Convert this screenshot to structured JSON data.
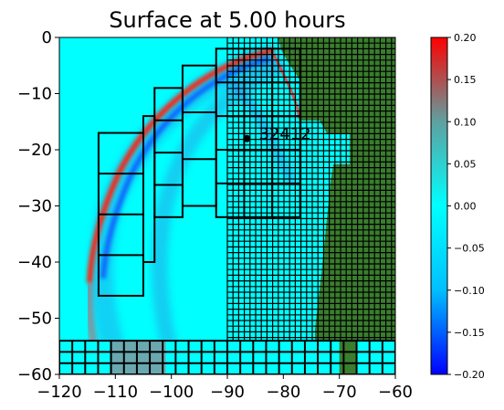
{
  "chart_data": {
    "type": "heatmap",
    "title": "Surface at 5.00 hours",
    "xlabel": "",
    "ylabel": "",
    "xlim": [
      -120,
      -60
    ],
    "ylim": [
      -60,
      0
    ],
    "x_ticks": [
      -120,
      -110,
      -100,
      -90,
      -80,
      -70,
      -60
    ],
    "x_tick_labels": [
      "−120",
      "−110",
      "−100",
      "−90",
      "−80",
      "−70",
      "−60"
    ],
    "y_ticks": [
      0,
      -10,
      -20,
      -30,
      -40,
      -50,
      -60
    ],
    "y_tick_labels": [
      "0",
      "−10",
      "−20",
      "−30",
      "−40",
      "−50",
      "−60"
    ],
    "colorbar": {
      "min": -0.2,
      "max": 0.2,
      "ticks": [
        0.2,
        0.15,
        0.1,
        0.05,
        0.0,
        -0.05,
        -0.1,
        -0.15,
        -0.2
      ],
      "tick_labels": [
        "0.20",
        "0.15",
        "0.10",
        "0.05",
        "0.00",
        "−0.05",
        "−0.10",
        "−0.15",
        "−0.20"
      ],
      "colors": [
        "#0000ff",
        "#00bfff",
        "#00ffff",
        "#5fa0a0",
        "#ff0000"
      ]
    },
    "annotations": [
      {
        "label": "32412",
        "x": -86.5,
        "y": -18.0
      }
    ],
    "grid_patches": [
      {
        "x0": -113,
        "x1": -105,
        "y0": -46,
        "y1": -17,
        "nx": 1,
        "ny": 4
      },
      {
        "x0": -105,
        "x1": -103,
        "y0": -40,
        "y1": -14,
        "nx": 1,
        "ny": 1
      },
      {
        "x0": -103,
        "x1": -98,
        "y0": -32,
        "y1": -9,
        "nx": 1,
        "ny": 4
      },
      {
        "x0": -98,
        "x1": -92,
        "y0": -30,
        "y1": -5,
        "nx": 1,
        "ny": 3
      },
      {
        "x0": -92,
        "x1": -77,
        "y0": -32,
        "y1": -2,
        "nx": 3,
        "ny": 5
      }
    ],
    "land_color": "#3a7d2e",
    "ocean_color": "#00ffff",
    "wave_color": "#ff2010"
  }
}
